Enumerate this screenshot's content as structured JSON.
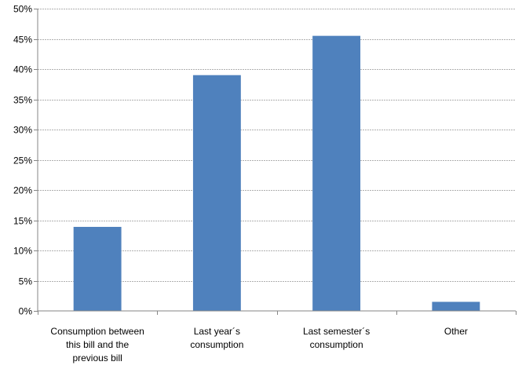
{
  "chart_data": {
    "type": "bar",
    "categories": [
      [
        "Consumption between",
        "this bill and the",
        "previous bill"
      ],
      [
        "Last year´s",
        "consumption"
      ],
      [
        "Last semester´s",
        "consumption"
      ],
      [
        "Other"
      ]
    ],
    "values": [
      13.9,
      39.0,
      45.5,
      1.5
    ],
    "ylim": [
      0,
      50
    ],
    "yticks": [
      "0%",
      "5%",
      "10%",
      "15%",
      "20%",
      "25%",
      "30%",
      "35%",
      "40%",
      "45%",
      "50%"
    ],
    "title": "",
    "xlabel": "",
    "ylabel": "",
    "grid": true,
    "legend": "none",
    "bar_color": "#4f81bd"
  }
}
